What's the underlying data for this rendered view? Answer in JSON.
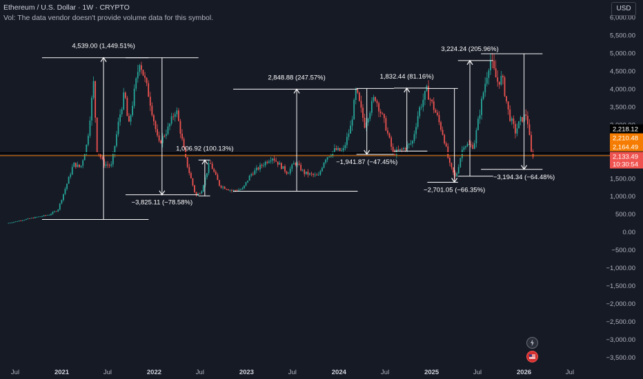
{
  "header": {
    "title": "Ethereum / U.S. Dollar · 1W · CRYPTO",
    "vol_note": "Vol: The data vendor doesn't provide volume data for this symbol."
  },
  "currency_button": "USD",
  "colors": {
    "background": "#161a25",
    "up_candle": "#26a69a",
    "down_candle": "#ef5350",
    "annotation": "#ffffff",
    "current_price_line": "#f57c00",
    "black_line": "#000000"
  },
  "icons": [
    "lightning-icon",
    "flag-icon"
  ],
  "chart_data": {
    "type": "candlestick",
    "symbol": "Ethereum / U.S. Dollar",
    "interval": "1W",
    "ylim": [
      -3600,
      6100
    ],
    "y_ticks": [
      6000,
      5500,
      5000,
      4500,
      4000,
      3500,
      3000,
      2500,
      2000,
      1500,
      1000,
      500,
      0,
      -500,
      -1000,
      -1500,
      -2000,
      -2500,
      -3000,
      -3500
    ],
    "y_tick_labels": [
      "6,000.00",
      "5,500.00",
      "5,000.00",
      "4,500.00",
      "4,000.00",
      "3,500.00",
      "3,000.00",
      "2,500.00",
      "2,000.00",
      "1,500.00",
      "1,000.00",
      "500.00",
      "0.00",
      "−500.00",
      "−1,000.00",
      "−1,500.00",
      "−2,000.00",
      "−2,500.00",
      "−3,000.00",
      "−3,500.00"
    ],
    "x_ticks": [
      {
        "label": "Jul",
        "date": "2020-07-01"
      },
      {
        "label": "2021",
        "date": "2021-01-01"
      },
      {
        "label": "Jul",
        "date": "2021-07-01"
      },
      {
        "label": "2022",
        "date": "2022-01-01"
      },
      {
        "label": "Jul",
        "date": "2022-07-01"
      },
      {
        "label": "2023",
        "date": "2023-01-01"
      },
      {
        "label": "Jul",
        "date": "2023-07-01"
      },
      {
        "label": "2024",
        "date": "2024-01-01"
      },
      {
        "label": "Jul",
        "date": "2024-07-01"
      },
      {
        "label": "2025",
        "date": "2025-01-01"
      },
      {
        "label": "Jul",
        "date": "2025-07-01"
      },
      {
        "label": "2026",
        "date": "2026-01-01"
      },
      {
        "label": "Jul",
        "date": "2026-07-01"
      }
    ],
    "price_path": [
      [
        "2020-06-01",
        240
      ],
      [
        "2020-09-01",
        380
      ],
      [
        "2020-11-15",
        480
      ],
      [
        "2020-12-20",
        620
      ],
      [
        "2021-01-25",
        1350
      ],
      [
        "2021-02-20",
        1900
      ],
      [
        "2021-03-20",
        1800
      ],
      [
        "2021-04-15",
        2500
      ],
      [
        "2021-05-10",
        4150
      ],
      [
        "2021-05-24",
        2300
      ],
      [
        "2021-06-20",
        1900
      ],
      [
        "2021-07-20",
        1850
      ],
      [
        "2021-08-20",
        3200
      ],
      [
        "2021-09-10",
        3900
      ],
      [
        "2021-09-25",
        2900
      ],
      [
        "2021-11-08",
        4800
      ],
      [
        "2021-12-15",
        3800
      ],
      [
        "2022-01-22",
        2450
      ],
      [
        "2022-03-01",
        2900
      ],
      [
        "2022-04-01",
        3450
      ],
      [
        "2022-05-10",
        2000
      ],
      [
        "2022-06-18",
        1000
      ],
      [
        "2022-07-10",
        1150
      ],
      [
        "2022-08-12",
        1950
      ],
      [
        "2022-09-20",
        1300
      ],
      [
        "2022-11-09",
        1150
      ],
      [
        "2022-12-20",
        1200
      ],
      [
        "2023-01-20",
        1600
      ],
      [
        "2023-04-15",
        2100
      ],
      [
        "2023-06-15",
        1650
      ],
      [
        "2023-07-15",
        1950
      ],
      [
        "2023-08-20",
        1650
      ],
      [
        "2023-10-15",
        1550
      ],
      [
        "2023-11-10",
        2050
      ],
      [
        "2023-12-20",
        2300
      ],
      [
        "2024-01-20",
        2250
      ],
      [
        "2024-02-20",
        2950
      ],
      [
        "2024-03-12",
        3950
      ],
      [
        "2024-04-15",
        3000
      ],
      [
        "2024-05-25",
        3800
      ],
      [
        "2024-07-05",
        3000
      ],
      [
        "2024-08-05",
        2200
      ],
      [
        "2024-09-10",
        2300
      ],
      [
        "2024-10-20",
        2500
      ],
      [
        "2024-11-15",
        3400
      ],
      [
        "2024-12-16",
        3950
      ],
      [
        "2025-01-25",
        3250
      ],
      [
        "2025-02-20",
        2700
      ],
      [
        "2025-03-15",
        1900
      ],
      [
        "2025-04-09",
        1500
      ],
      [
        "2025-05-10",
        2450
      ],
      [
        "2025-06-20",
        2400
      ],
      [
        "2025-07-25",
        3800
      ],
      [
        "2025-08-23",
        4850
      ],
      [
        "2025-09-20",
        4200
      ],
      [
        "2025-10-10",
        4300
      ],
      [
        "2025-11-05",
        3300
      ],
      [
        "2025-12-01",
        2800
      ],
      [
        "2025-12-20",
        3100
      ],
      [
        "2026-01-15",
        3300
      ],
      [
        "2026-02-03",
        2150
      ]
    ],
    "current_price": 2133.49,
    "price_labels": [
      {
        "text": "2,218.12",
        "style": "dark"
      },
      {
        "text": "2,210.48",
        "style": "orange"
      },
      {
        "text": "2,164.49",
        "style": "orange"
      },
      {
        "text": "2,133.49",
        "style": "red"
      },
      {
        "text": "10:30:54",
        "style": "red"
      }
    ],
    "measurements": [
      {
        "label": "4,539.00 (1,449.51%)",
        "from_date": "2020-10-15",
        "to_date": "2021-12-10",
        "from_price": 350,
        "to_price": 4870,
        "arrow_date": "2021-06-15",
        "label_pos": "above"
      },
      {
        "label": "−3,825.11 (−78.58%)",
        "from_date": "2021-09-10",
        "to_date": "2022-06-25",
        "from_price": 4870,
        "to_price": 1040,
        "arrow_date": "2022-02-01",
        "label_pos": "below"
      },
      {
        "label": "1,006.92 (100.13%)",
        "from_date": "2022-06-25",
        "to_date": "2022-08-10",
        "from_price": 1010,
        "to_price": 2010,
        "arrow_date": "2022-07-20",
        "label_pos": "above"
      },
      {
        "label": "2,848.88 (247.57%)",
        "from_date": "2022-11-09",
        "to_date": "2024-03-15",
        "from_price": 1140,
        "to_price": 3990,
        "arrow_date": "2023-07-18",
        "label_pos": "above"
      },
      {
        "label": "−1,941.87 (−47.45%)",
        "from_date": "2024-03-10",
        "to_date": "2024-08-05",
        "from_price": 4010,
        "to_price": 2170,
        "arrow_date": "2024-04-20",
        "label_pos": "below"
      },
      {
        "label": "1,832.44 (81.16%)",
        "from_date": "2024-08-05",
        "to_date": "2024-12-15",
        "from_price": 2260,
        "to_price": 4020,
        "arrow_date": "2024-09-25",
        "label_pos": "above"
      },
      {
        "label": "−2,701.05 (−66.35%)",
        "from_date": "2024-12-15",
        "to_date": "2025-04-15",
        "from_price": 4010,
        "to_price": 1390,
        "arrow_date": "2025-04-01",
        "label_pos": "below"
      },
      {
        "label": "3,224.24 (205.96%)",
        "from_date": "2025-04-15",
        "to_date": "2025-09-01",
        "from_price": 1560,
        "to_price": 4790,
        "arrow_date": "2025-06-01",
        "label_pos": "above"
      },
      {
        "label": "−3,194.34 (−64.48%)",
        "from_date": "2025-07-15",
        "to_date": "2026-03-15",
        "from_price": 4980,
        "to_price": 1750,
        "arrow_date": "2026-01-01",
        "label_pos": "below"
      }
    ],
    "grid": false,
    "legend": "none"
  }
}
